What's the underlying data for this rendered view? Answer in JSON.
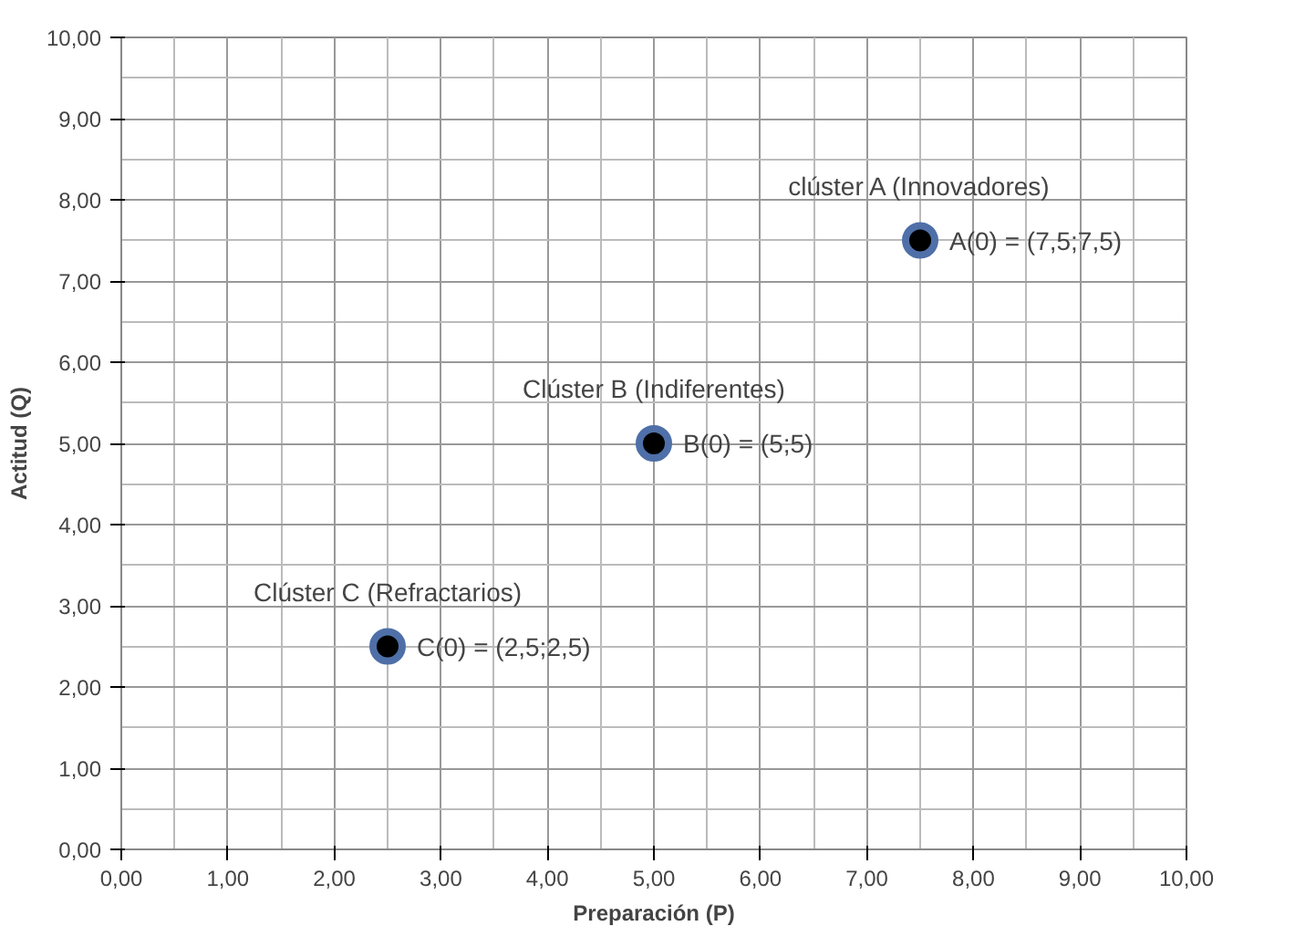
{
  "chart_data": {
    "type": "scatter",
    "xlabel": "Preparación (P)",
    "ylabel": "Actitud (Q)",
    "x": [
      7.5,
      5,
      2.5
    ],
    "series": [
      {
        "color": "#000000",
        "values": [
          7.5,
          5,
          2.5
        ]
      }
    ],
    "marker": "circle",
    "grid": true,
    "xlim": [
      0,
      10
    ],
    "ylim": [
      0,
      10
    ],
    "xticks": [
      {
        "value": 0,
        "label": "0,00"
      },
      {
        "value": 1,
        "label": "1,00"
      },
      {
        "value": 2,
        "label": "2,00"
      },
      {
        "value": 3,
        "label": "3,00"
      },
      {
        "value": 4,
        "label": "4,00"
      },
      {
        "value": 5,
        "label": "5,00"
      },
      {
        "value": 6,
        "label": "6,00"
      },
      {
        "value": 7,
        "label": "7,00"
      },
      {
        "value": 8,
        "label": "8,00"
      },
      {
        "value": 9,
        "label": "9,00"
      },
      {
        "value": 10,
        "label": "10,00"
      }
    ],
    "yticks": [
      {
        "value": 0,
        "label": "0,00"
      },
      {
        "value": 1,
        "label": "1,00"
      },
      {
        "value": 2,
        "label": "2,00"
      },
      {
        "value": 3,
        "label": "3,00"
      },
      {
        "value": 4,
        "label": "4,00"
      },
      {
        "value": 5,
        "label": "5,00"
      },
      {
        "value": 6,
        "label": "6,00"
      },
      {
        "value": 7,
        "label": "7,00"
      },
      {
        "value": 8,
        "label": "8,00"
      },
      {
        "value": 9,
        "label": "9,00"
      },
      {
        "value": 10,
        "label": "10,00"
      }
    ],
    "annotations": [
      {
        "text": "clúster A (Innovadores)",
        "x": 7.5,
        "y": 7.5
      },
      {
        "text": "A(0) = (7,5;7,5)",
        "x": 7.5,
        "y": 7.5
      },
      {
        "text": "Clúster B (Indiferentes)",
        "x": 5,
        "y": 5
      },
      {
        "text": "B(0) = (5;5)",
        "x": 5,
        "y": 5
      },
      {
        "text": "Clúster C (Refractarios)",
        "x": 2.5,
        "y": 2.5
      },
      {
        "text": "C(0) = (2,5;2,5)",
        "x": 2.5,
        "y": 2.5
      }
    ]
  }
}
